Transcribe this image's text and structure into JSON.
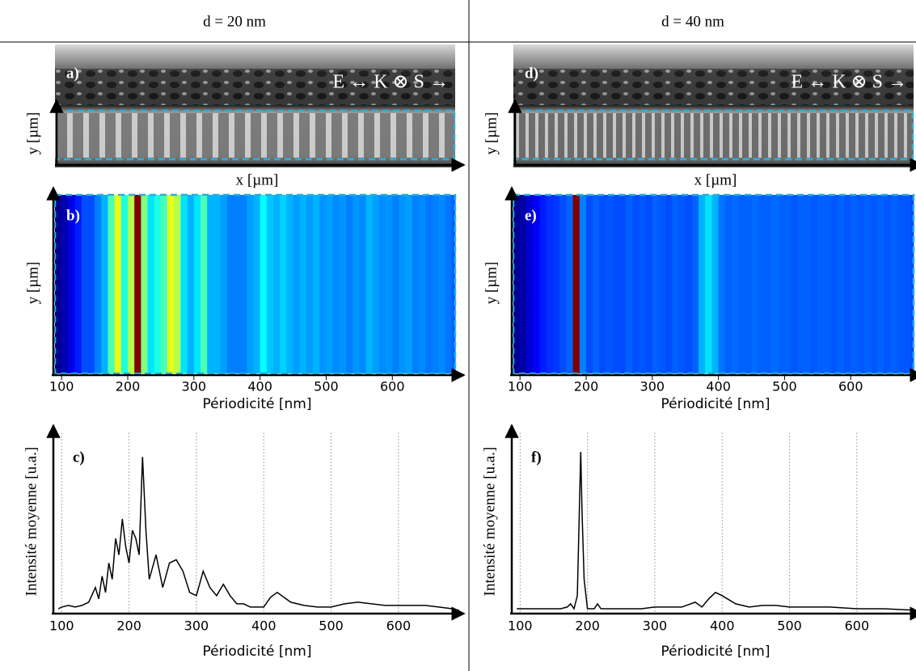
{
  "columns": [
    {
      "title": "d = 20 nm"
    },
    {
      "title": "d = 40 nm"
    }
  ],
  "images": [
    {
      "label": "a)",
      "annotation": "E ↔ K ⊗ S →",
      "x_axis": "x [µm]",
      "y_axis": "y [µm]"
    },
    {
      "label": "d)",
      "annotation": "E ↔ K ⊗ S →",
      "x_axis": "x [µm]",
      "y_axis": "y [µm]"
    }
  ],
  "chart_data": [
    {
      "type": "heatmap",
      "panel_label": "b)",
      "y_label": "y [µm]",
      "x_label": "Périodicité [nm]",
      "colormap": "jet",
      "x": [
        90,
        100,
        110,
        120,
        130,
        140,
        150,
        160,
        170,
        180,
        190,
        200,
        210,
        220,
        230,
        240,
        250,
        260,
        270,
        280,
        290,
        300,
        310,
        320,
        330,
        340,
        350,
        360,
        370,
        380,
        390,
        400,
        410,
        420,
        430,
        440,
        450,
        460,
        470,
        480,
        490,
        500,
        510,
        520,
        530,
        540,
        550,
        560,
        570,
        580,
        590,
        600,
        610,
        620,
        630,
        640,
        650,
        660,
        670,
        680,
        690
      ],
      "values": [
        0.02,
        0.05,
        0.1,
        0.15,
        0.2,
        0.2,
        0.25,
        0.3,
        0.45,
        0.6,
        0.4,
        0.55,
        1.0,
        0.5,
        0.35,
        0.4,
        0.45,
        0.6,
        0.55,
        0.35,
        0.3,
        0.35,
        0.45,
        0.3,
        0.3,
        0.28,
        0.25,
        0.25,
        0.25,
        0.28,
        0.3,
        0.38,
        0.32,
        0.3,
        0.33,
        0.3,
        0.28,
        0.3,
        0.28,
        0.3,
        0.27,
        0.28,
        0.26,
        0.27,
        0.25,
        0.27,
        0.26,
        0.3,
        0.28,
        0.26,
        0.27,
        0.25,
        0.27,
        0.28,
        0.25,
        0.26,
        0.24,
        0.25,
        0.26,
        0.24,
        0.22
      ],
      "xlim": [
        90,
        695
      ],
      "xticks": [
        100,
        200,
        300,
        400,
        500,
        600
      ]
    },
    {
      "type": "heatmap",
      "panel_label": "e)",
      "y_label": "y [µm]",
      "x_label": "Périodicité [nm]",
      "colormap": "jet",
      "x": [
        90,
        100,
        110,
        120,
        130,
        140,
        150,
        160,
        170,
        180,
        190,
        200,
        210,
        220,
        230,
        240,
        250,
        260,
        270,
        280,
        290,
        300,
        310,
        320,
        330,
        340,
        350,
        360,
        370,
        380,
        390,
        400,
        410,
        420,
        430,
        440,
        450,
        460,
        470,
        480,
        490,
        500,
        510,
        520,
        530,
        540,
        550,
        560,
        570,
        580,
        590,
        600,
        610,
        620,
        630,
        640,
        650,
        660,
        670,
        680,
        690
      ],
      "values": [
        0.02,
        0.04,
        0.08,
        0.12,
        0.15,
        0.17,
        0.18,
        0.2,
        0.22,
        1.0,
        0.25,
        0.2,
        0.22,
        0.2,
        0.21,
        0.2,
        0.2,
        0.22,
        0.2,
        0.21,
        0.2,
        0.22,
        0.21,
        0.2,
        0.22,
        0.21,
        0.2,
        0.22,
        0.3,
        0.35,
        0.3,
        0.24,
        0.22,
        0.23,
        0.22,
        0.22,
        0.23,
        0.22,
        0.22,
        0.23,
        0.22,
        0.22,
        0.21,
        0.22,
        0.22,
        0.21,
        0.22,
        0.22,
        0.21,
        0.22,
        0.21,
        0.22,
        0.21,
        0.22,
        0.21,
        0.22,
        0.21,
        0.22,
        0.21,
        0.21,
        0.2
      ],
      "xlim": [
        90,
        695
      ],
      "xticks": [
        100,
        200,
        300,
        400,
        500,
        600
      ]
    },
    {
      "type": "line",
      "panel_label": "c)",
      "y_label": "Intensité moyenne [u.a.]",
      "x_label": "Périodicité [nm]",
      "color": "#000000",
      "grid": true,
      "x": [
        95,
        100,
        110,
        120,
        130,
        140,
        150,
        155,
        160,
        165,
        170,
        175,
        180,
        185,
        190,
        195,
        200,
        205,
        210,
        215,
        220,
        225,
        230,
        240,
        250,
        260,
        270,
        280,
        290,
        300,
        310,
        320,
        330,
        340,
        350,
        360,
        370,
        380,
        390,
        400,
        410,
        420,
        440,
        460,
        480,
        500,
        520,
        540,
        560,
        580,
        600,
        620,
        640,
        660,
        680,
        690
      ],
      "values": [
        2,
        3,
        4,
        3,
        4,
        6,
        15,
        8,
        22,
        12,
        30,
        20,
        45,
        35,
        57,
        40,
        30,
        50,
        45,
        35,
        95,
        50,
        20,
        35,
        15,
        30,
        32,
        25,
        12,
        10,
        25,
        15,
        10,
        17,
        10,
        5,
        5,
        3,
        3,
        3,
        9,
        12,
        6,
        4,
        3,
        3,
        5,
        6,
        5,
        4,
        4,
        4,
        4,
        3,
        2,
        1
      ],
      "xlim": [
        90,
        695
      ],
      "ylim": [
        0,
        100
      ],
      "xticks": [
        100,
        200,
        300,
        400,
        500,
        600
      ]
    },
    {
      "type": "line",
      "panel_label": "f)",
      "y_label": "Intensité moyenne [u.a.]",
      "x_label": "Périodicité [nm]",
      "color": "#000000",
      "grid": true,
      "x": [
        95,
        100,
        120,
        140,
        160,
        170,
        175,
        180,
        185,
        190,
        192,
        195,
        200,
        210,
        215,
        220,
        240,
        260,
        280,
        300,
        320,
        340,
        360,
        370,
        380,
        390,
        400,
        420,
        440,
        460,
        480,
        500,
        520,
        560,
        600,
        640,
        690
      ],
      "values": [
        2,
        2,
        2,
        2,
        2,
        3,
        5,
        2,
        10,
        98,
        60,
        20,
        2,
        2,
        5,
        2,
        2,
        2,
        2,
        3,
        3,
        3,
        6,
        3,
        8,
        12,
        10,
        5,
        3,
        4,
        4,
        3,
        3,
        3,
        2,
        2,
        1
      ],
      "xlim": [
        90,
        695
      ],
      "ylim": [
        0,
        100
      ],
      "xticks": [
        100,
        200,
        300,
        400,
        500,
        600
      ]
    }
  ]
}
